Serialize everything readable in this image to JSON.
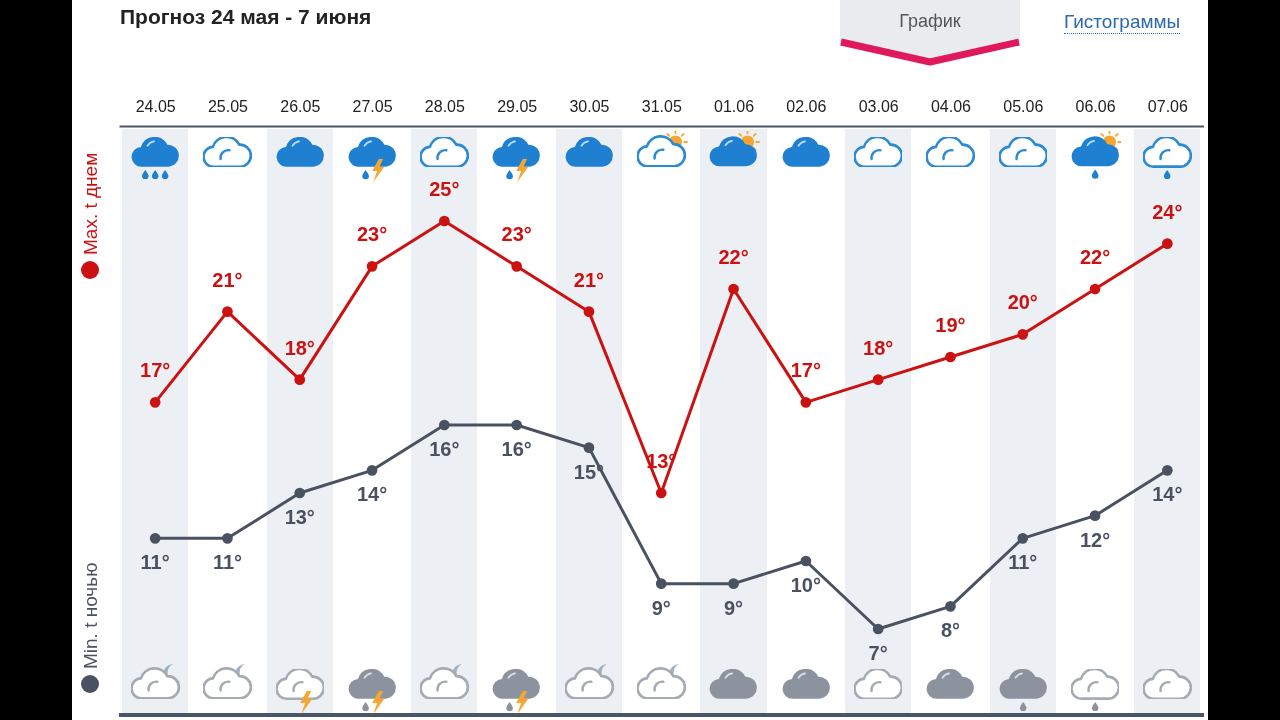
{
  "chart_data": {
    "type": "line",
    "title": "Прогноз 24 мая - 7 июня",
    "annotations": [
      "График",
      "Гистограммы"
    ],
    "categories": [
      "24.05",
      "25.05",
      "26.05",
      "27.05",
      "28.05",
      "29.05",
      "30.05",
      "31.05",
      "01.06",
      "02.06",
      "03.06",
      "04.06",
      "05.06",
      "06.06",
      "07.06"
    ],
    "series": [
      {
        "name": "Max. t днем",
        "color": "#cc1111",
        "values": [
          17,
          21,
          18,
          23,
          25,
          23,
          21,
          13,
          22,
          17,
          18,
          19,
          20,
          22,
          24
        ],
        "value_labels": [
          "17°",
          "21°",
          "18°",
          "23°",
          "25°",
          "23°",
          "21°",
          "13°",
          "22°",
          "17°",
          "18°",
          "19°",
          "20°",
          "22°",
          "24°"
        ]
      },
      {
        "name": "Min. t ночью",
        "color": "#4a5261",
        "values": [
          11,
          11,
          13,
          14,
          16,
          16,
          15,
          9,
          9,
          10,
          7,
          8,
          11,
          12,
          14
        ],
        "value_labels": [
          "11°",
          "11°",
          "13°",
          "14°",
          "16°",
          "16°",
          "15°",
          "9°",
          "9°",
          "10°",
          "7°",
          "8°",
          "11°",
          "12°",
          "14°"
        ]
      }
    ],
    "legend": "left",
    "marker": "circle",
    "line_style": "solid"
  }
}
